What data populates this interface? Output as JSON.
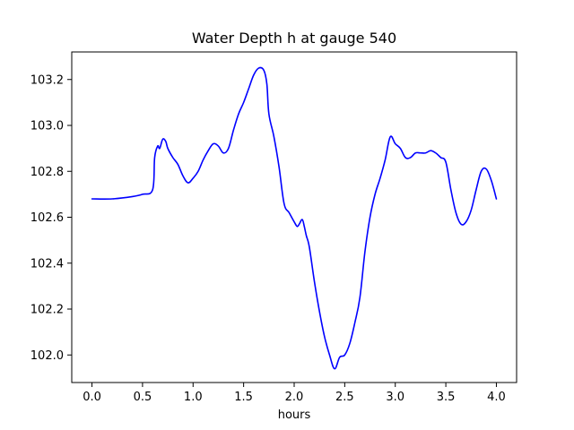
{
  "chart_data": {
    "type": "line",
    "title": "Water Depth h at gauge 540",
    "xlabel": "hours",
    "ylabel": "",
    "xlim": [
      -0.2,
      4.2
    ],
    "ylim": [
      101.88,
      103.32
    ],
    "xticks": [
      0.0,
      0.5,
      1.0,
      1.5,
      2.0,
      2.5,
      3.0,
      3.5,
      4.0
    ],
    "xtick_labels": [
      "0.0",
      "0.5",
      "1.0",
      "1.5",
      "2.0",
      "2.5",
      "3.0",
      "3.5",
      "4.0"
    ],
    "yticks": [
      102.0,
      102.2,
      102.4,
      102.6,
      102.8,
      103.0,
      103.2
    ],
    "ytick_labels": [
      "102.0",
      "102.2",
      "102.4",
      "102.6",
      "102.8",
      "103.0",
      "103.2"
    ],
    "grid": false,
    "line_color": "#0000ff",
    "series": [
      {
        "x": [
          0.0,
          0.2,
          0.4,
          0.5,
          0.6,
          0.62,
          0.65,
          0.67,
          0.7,
          0.73,
          0.75,
          0.8,
          0.85,
          0.9,
          0.95,
          1.0,
          1.05,
          1.1,
          1.15,
          1.2,
          1.25,
          1.3,
          1.35,
          1.4,
          1.45,
          1.5,
          1.55,
          1.6,
          1.65,
          1.7,
          1.73,
          1.75,
          1.8,
          1.85,
          1.9,
          1.95,
          2.0,
          2.03,
          2.05,
          2.08,
          2.1,
          2.12,
          2.15,
          2.2,
          2.25,
          2.3,
          2.35,
          2.4,
          2.45,
          2.5,
          2.55,
          2.6,
          2.65,
          2.7,
          2.75,
          2.8,
          2.85,
          2.9,
          2.95,
          3.0,
          3.05,
          3.1,
          3.15,
          3.2,
          3.25,
          3.3,
          3.35,
          3.4,
          3.45,
          3.5,
          3.55,
          3.6,
          3.65,
          3.7,
          3.75,
          3.8,
          3.85,
          3.9,
          3.95,
          4.0
        ],
        "y": [
          102.68,
          102.68,
          102.69,
          102.7,
          102.72,
          102.86,
          102.91,
          102.9,
          102.94,
          102.93,
          102.9,
          102.86,
          102.83,
          102.78,
          102.75,
          102.77,
          102.8,
          102.85,
          102.89,
          102.92,
          102.91,
          102.88,
          102.9,
          102.98,
          103.05,
          103.1,
          103.16,
          103.22,
          103.25,
          103.24,
          103.18,
          103.05,
          102.95,
          102.82,
          102.66,
          102.62,
          102.58,
          102.56,
          102.57,
          102.59,
          102.56,
          102.52,
          102.47,
          102.32,
          102.19,
          102.08,
          102.0,
          101.94,
          101.99,
          102.0,
          102.05,
          102.14,
          102.25,
          102.45,
          102.6,
          102.7,
          102.77,
          102.85,
          102.95,
          102.92,
          102.9,
          102.86,
          102.86,
          102.88,
          102.88,
          102.88,
          102.89,
          102.88,
          102.86,
          102.84,
          102.72,
          102.62,
          102.57,
          102.58,
          102.63,
          102.72,
          102.8,
          102.81,
          102.76,
          102.68
        ]
      }
    ]
  }
}
